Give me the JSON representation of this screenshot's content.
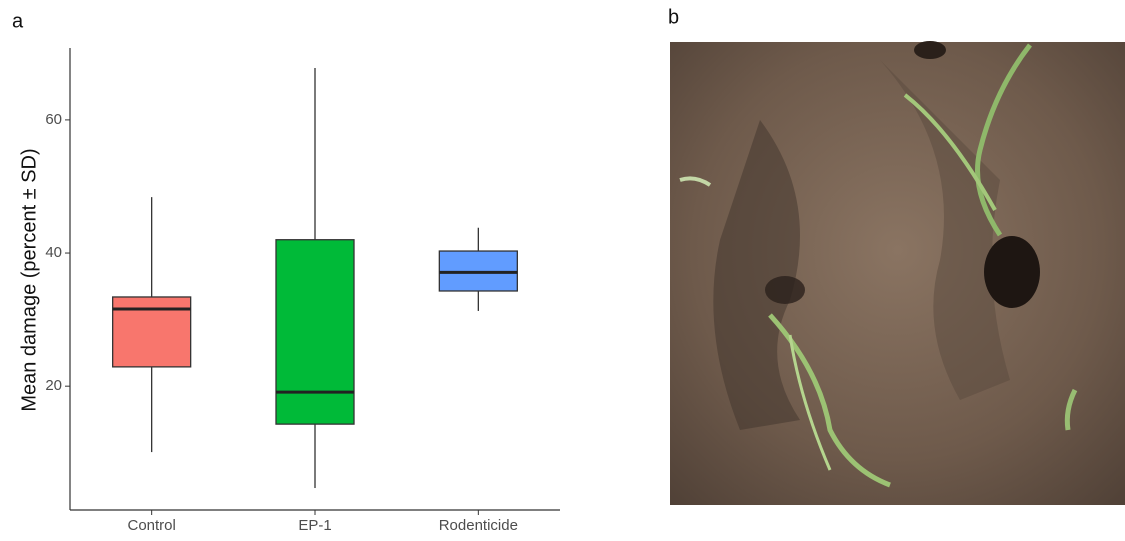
{
  "chart_data": {
    "type": "box",
    "panel_label": "a",
    "ylabel": "Mean damage (percent ± SD)",
    "categories": [
      "Control",
      "EP-1",
      "Rodenticide"
    ],
    "colors": [
      "#F8766D",
      "#00BA38",
      "#619CFF"
    ],
    "boxes": [
      {
        "min": 10.1,
        "q1": 22.9,
        "median": 31.6,
        "q3": 33.4,
        "max": 48.4
      },
      {
        "min": 4.7,
        "q1": 14.3,
        "median": 19.1,
        "q3": 42.0,
        "max": 67.8
      },
      {
        "min": 31.3,
        "q1": 34.3,
        "median": 37.1,
        "q3": 40.3,
        "max": 43.8
      }
    ],
    "ylim": [
      1.4,
      70.8
    ],
    "yticks": [
      20,
      40,
      60
    ],
    "grid": false
  },
  "photo": {
    "panel_label": "b"
  }
}
